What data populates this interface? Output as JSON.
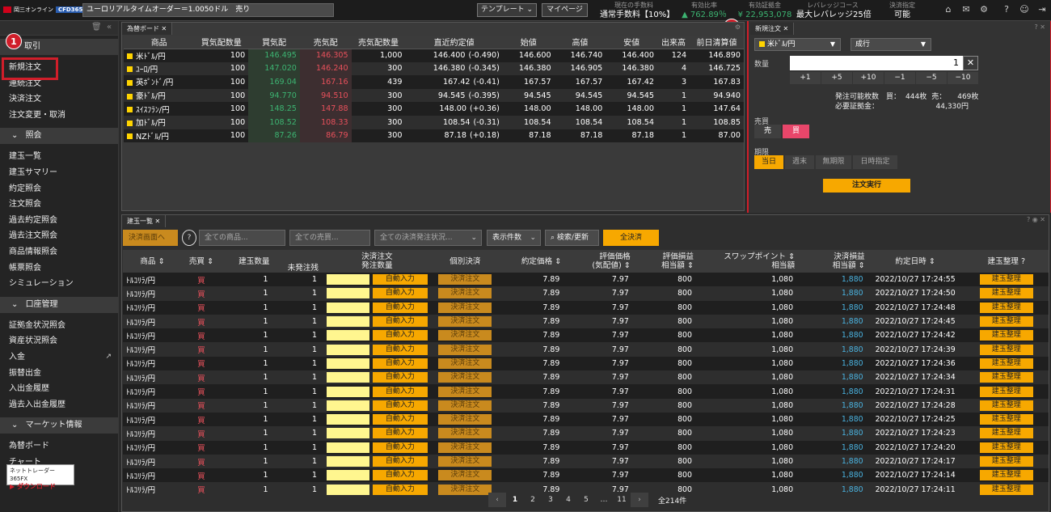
{
  "header": {
    "logo_text": "岡三オンライン",
    "logo_badge": "CFD365",
    "ticker": "ユーロリアルタイムオーダー＝1.0050ドル　売り",
    "template_btn": "テンプレート ⌄",
    "mypage_btn": "マイページ",
    "fee_label": "現在の手数料",
    "fee_value": "通常手数料【10%】",
    "ratio_label": "有効比率",
    "ratio_value": "▲ 762.89％",
    "margin_label": "有効証拠金",
    "margin_value": "¥ 22,953,078",
    "leverage_label": "レバレッジコース",
    "leverage_value": "最大レバレッジ25倍",
    "settle_label": "決済指定",
    "settle_value": "可能"
  },
  "sidebar": {
    "sec_trade": "取引",
    "trade_items": [
      "新規注文",
      "連続注文",
      "決済注文",
      "注文変更・取消"
    ],
    "sec_inquiry": "照会",
    "inquiry_items": [
      "建玉一覧",
      "建玉サマリー",
      "約定照会",
      "注文照会",
      "過去約定照会",
      "過去注文照会",
      "商品情報照会",
      "帳票照会",
      "シミュレーション"
    ],
    "sec_account": "口座管理",
    "account_items": [
      "証拠金状況照会",
      "資産状況照会",
      "入金",
      "振替出金",
      "入出金履歴",
      "過去入出金履歴"
    ],
    "sec_market": "マーケット情報",
    "market_items": [
      "為替ボード",
      "チャート"
    ],
    "download_top": "ネットトレーダー365FX",
    "download_btn": "▶ ダウンロード"
  },
  "badges": [
    "1",
    "1"
  ],
  "board": {
    "tab": "為替ボード",
    "headers": [
      "商品",
      "買気配数量",
      "買気配",
      "売気配",
      "売気配数量",
      "直近約定値",
      "始値",
      "高値",
      "安値",
      "出来高",
      "前日清算値"
    ],
    "rows": [
      [
        "米ﾄﾞﾙ/円",
        "100",
        "146.495",
        "146.305",
        "1,000",
        "146.400",
        "(-0.490)",
        "146.600",
        "146.740",
        "146.400",
        "124",
        "146.890"
      ],
      [
        "ﾕｰﾛ/円",
        "100",
        "147.020",
        "146.240",
        "300",
        "146.380",
        "(-0.345)",
        "146.380",
        "146.905",
        "146.380",
        "4",
        "146.725"
      ],
      [
        "英ﾎﾟﾝﾄﾞ/円",
        "100",
        "169.04",
        "167.16",
        "439",
        "167.42",
        "(-0.41)",
        "167.57",
        "167.57",
        "167.42",
        "3",
        "167.83"
      ],
      [
        "豪ﾄﾞﾙ/円",
        "100",
        "94.770",
        "94.510",
        "300",
        "94.545",
        "(-0.395)",
        "94.545",
        "94.545",
        "94.545",
        "1",
        "94.940"
      ],
      [
        "ｽｲｽﾌﾗﾝ/円",
        "100",
        "148.25",
        "147.88",
        "300",
        "148.00",
        "(+0.36)",
        "148.00",
        "148.00",
        "148.00",
        "1",
        "147.64"
      ],
      [
        "加ﾄﾞﾙ/円",
        "100",
        "108.52",
        "108.33",
        "300",
        "108.54",
        "(-0.31)",
        "108.54",
        "108.54",
        "108.54",
        "1",
        "108.85"
      ],
      [
        "NZﾄﾞﾙ/円",
        "100",
        "87.26",
        "86.79",
        "300",
        "87.18",
        "(+0.18)",
        "87.18",
        "87.18",
        "87.18",
        "1",
        "87.00"
      ]
    ]
  },
  "order": {
    "tab": "新規注文",
    "symbol": "米ﾄﾞﾙ/円",
    "type": "成行",
    "qty_label": "数量",
    "qty": "1",
    "steps": [
      "+1",
      "+5",
      "+10",
      "−1",
      "−5",
      "−10"
    ],
    "avail_label": "発注可能枚数　買：",
    "avail_buy": "444枚",
    "avail_sell_label": "売：",
    "avail_sell": "469枚",
    "req_label": "必要証拠金：",
    "req_value": "44,330円",
    "side_label": "売買",
    "sell": "売",
    "buy": "買",
    "period_label": "期限",
    "periods": [
      "当日",
      "週末",
      "無期限",
      "日時指定"
    ],
    "submit": "注文実行"
  },
  "positions": {
    "tab": "建玉一覧",
    "toolbar": {
      "settle_screen": "決済画面へ",
      "help": "?",
      "all_products": "全ての商品...",
      "all_side": "全ての売買...",
      "all_status": "全ての決済発注状況...",
      "count": "表示件数",
      "search": "検索/更新",
      "settle_all": "全決済"
    },
    "headers": {
      "product": "商品 ⇕",
      "side": "売買 ⇕",
      "qty": "建玉数量",
      "unfilled": "未発注残",
      "settle_order": "決済注文",
      "order_qty": "発注数量",
      "individual": "個別決済",
      "price": "約定価格 ⇕",
      "eval": "評価価格",
      "eval2": "(気配値) ⇕",
      "pl": "評価損益",
      "pl2": "相当額 ⇕",
      "swap": "スワップポイント ⇕",
      "swap2": "相当額",
      "settle_pl": "決済損益",
      "settle_pl2": "相当額 ⇕",
      "datetime": "約定日時 ⇕",
      "adjust": "建玉整理 ?"
    },
    "auto_label": "自動入力",
    "settle_label": "決済注文",
    "adjust_label": "建玉整理",
    "rows": [
      {
        "p": "ﾄﾙｺﾘﾗ/円",
        "s": "買",
        "q": "1",
        "u": "1",
        "pr": "7.89",
        "ev": "7.97",
        "pl": "800",
        "sw": "1,080",
        "sp": "1,880",
        "dt": "2022/10/27 17:24:55"
      },
      {
        "p": "ﾄﾙｺﾘﾗ/円",
        "s": "買",
        "q": "1",
        "u": "1",
        "pr": "7.89",
        "ev": "7.97",
        "pl": "800",
        "sw": "1,080",
        "sp": "1,880",
        "dt": "2022/10/27 17:24:50"
      },
      {
        "p": "ﾄﾙｺﾘﾗ/円",
        "s": "買",
        "q": "1",
        "u": "1",
        "pr": "7.89",
        "ev": "7.97",
        "pl": "800",
        "sw": "1,080",
        "sp": "1,880",
        "dt": "2022/10/27 17:24:48"
      },
      {
        "p": "ﾄﾙｺﾘﾗ/円",
        "s": "買",
        "q": "1",
        "u": "1",
        "pr": "7.89",
        "ev": "7.97",
        "pl": "800",
        "sw": "1,080",
        "sp": "1,880",
        "dt": "2022/10/27 17:24:45"
      },
      {
        "p": "ﾄﾙｺﾘﾗ/円",
        "s": "買",
        "q": "1",
        "u": "1",
        "pr": "7.89",
        "ev": "7.97",
        "pl": "800",
        "sw": "1,080",
        "sp": "1,880",
        "dt": "2022/10/27 17:24:42"
      },
      {
        "p": "ﾄﾙｺﾘﾗ/円",
        "s": "買",
        "q": "1",
        "u": "1",
        "pr": "7.89",
        "ev": "7.97",
        "pl": "800",
        "sw": "1,080",
        "sp": "1,880",
        "dt": "2022/10/27 17:24:39"
      },
      {
        "p": "ﾄﾙｺﾘﾗ/円",
        "s": "買",
        "q": "1",
        "u": "1",
        "pr": "7.89",
        "ev": "7.97",
        "pl": "800",
        "sw": "1,080",
        "sp": "1,880",
        "dt": "2022/10/27 17:24:36"
      },
      {
        "p": "ﾄﾙｺﾘﾗ/円",
        "s": "買",
        "q": "1",
        "u": "1",
        "pr": "7.89",
        "ev": "7.97",
        "pl": "800",
        "sw": "1,080",
        "sp": "1,880",
        "dt": "2022/10/27 17:24:34"
      },
      {
        "p": "ﾄﾙｺﾘﾗ/円",
        "s": "買",
        "q": "1",
        "u": "1",
        "pr": "7.89",
        "ev": "7.97",
        "pl": "800",
        "sw": "1,080",
        "sp": "1,880",
        "dt": "2022/10/27 17:24:31"
      },
      {
        "p": "ﾄﾙｺﾘﾗ/円",
        "s": "買",
        "q": "1",
        "u": "1",
        "pr": "7.89",
        "ev": "7.97",
        "pl": "800",
        "sw": "1,080",
        "sp": "1,880",
        "dt": "2022/10/27 17:24:28"
      },
      {
        "p": "ﾄﾙｺﾘﾗ/円",
        "s": "買",
        "q": "1",
        "u": "1",
        "pr": "7.89",
        "ev": "7.97",
        "pl": "800",
        "sw": "1,080",
        "sp": "1,880",
        "dt": "2022/10/27 17:24:25"
      },
      {
        "p": "ﾄﾙｺﾘﾗ/円",
        "s": "買",
        "q": "1",
        "u": "1",
        "pr": "7.89",
        "ev": "7.97",
        "pl": "800",
        "sw": "1,080",
        "sp": "1,880",
        "dt": "2022/10/27 17:24:23"
      },
      {
        "p": "ﾄﾙｺﾘﾗ/円",
        "s": "買",
        "q": "1",
        "u": "1",
        "pr": "7.89",
        "ev": "7.97",
        "pl": "800",
        "sw": "1,080",
        "sp": "1,880",
        "dt": "2022/10/27 17:24:20"
      },
      {
        "p": "ﾄﾙｺﾘﾗ/円",
        "s": "買",
        "q": "1",
        "u": "1",
        "pr": "7.89",
        "ev": "7.97",
        "pl": "800",
        "sw": "1,080",
        "sp": "1,880",
        "dt": "2022/10/27 17:24:17"
      },
      {
        "p": "ﾄﾙｺﾘﾗ/円",
        "s": "買",
        "q": "1",
        "u": "1",
        "pr": "7.89",
        "ev": "7.97",
        "pl": "800",
        "sw": "1,080",
        "sp": "1,880",
        "dt": "2022/10/27 17:24:14"
      },
      {
        "p": "ﾄﾙｺﾘﾗ/円",
        "s": "買",
        "q": "1",
        "u": "1",
        "pr": "7.89",
        "ev": "7.97",
        "pl": "800",
        "sw": "1,080",
        "sp": "1,880",
        "dt": "2022/10/27 17:24:11"
      }
    ],
    "pager": {
      "pages": [
        "1",
        "2",
        "3",
        "4",
        "5",
        "…",
        "11"
      ],
      "total": "全214件"
    }
  },
  "colors": {
    "accent": "#f7a800",
    "highlight": "#d01e2a",
    "buy": "#e8505b",
    "bid": "#3cb371",
    "link": "#4ab3e0"
  }
}
